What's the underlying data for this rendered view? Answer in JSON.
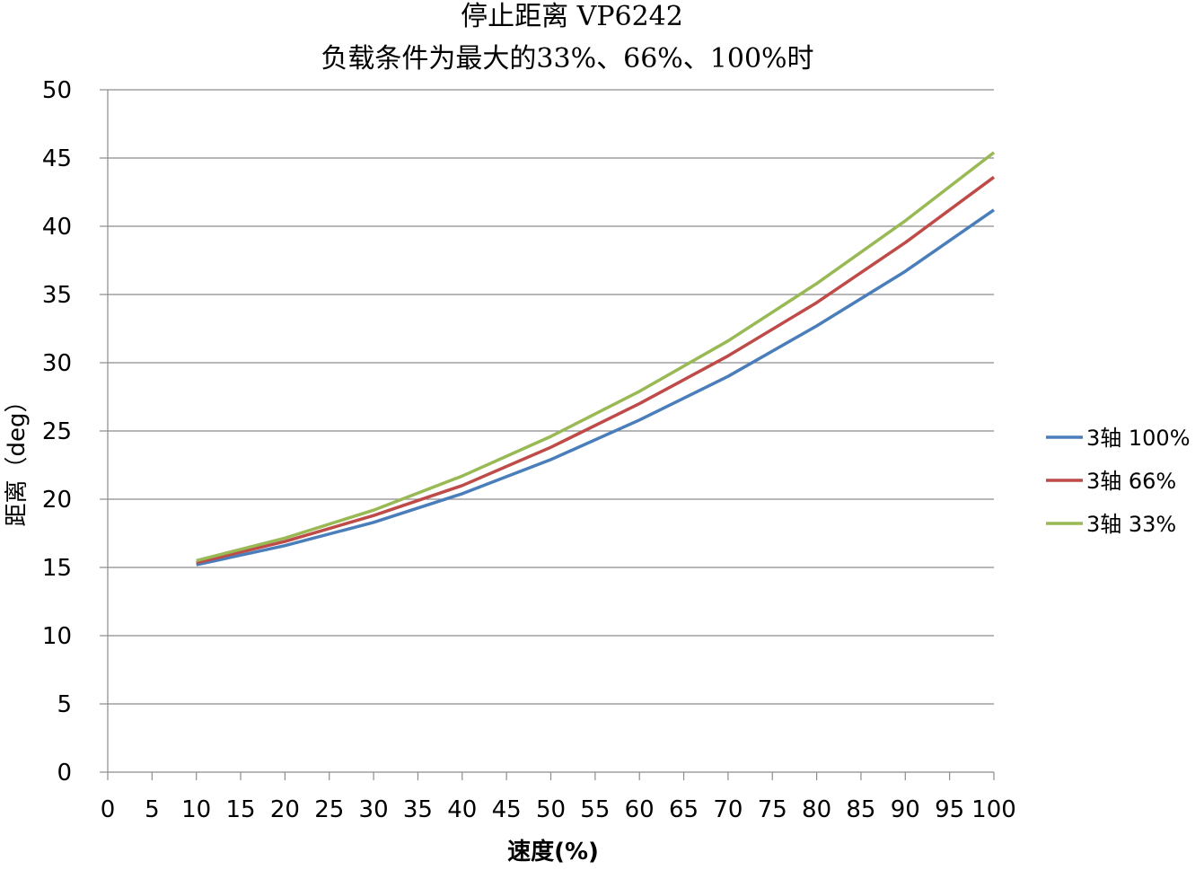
{
  "chart_data": {
    "type": "line",
    "title": "停止距离 VP6242",
    "subtitle": "负载条件为最大的33%、66%、100%时",
    "xlabel": "速度(%)",
    "ylabel": "距离（deg）",
    "xlim": [
      0,
      100
    ],
    "ylim": [
      0,
      50
    ],
    "x_ticks": [
      "0",
      "5",
      "10",
      "15",
      "20",
      "25",
      "30",
      "35",
      "40",
      "45",
      "50",
      "55",
      "60",
      "65",
      "70",
      "75",
      "80",
      "85",
      "90",
      "95",
      "100"
    ],
    "y_ticks": [
      "0",
      "5",
      "10",
      "15",
      "20",
      "25",
      "30",
      "35",
      "40",
      "45",
      "50"
    ],
    "grid": "horizontal",
    "legend_position": "right",
    "x": [
      10,
      20,
      30,
      40,
      50,
      60,
      70,
      80,
      90,
      100
    ],
    "series": [
      {
        "name": "3轴  100%",
        "color": "#4a7ebb",
        "values": [
          15.2,
          16.6,
          18.3,
          20.4,
          22.9,
          25.8,
          29.0,
          32.7,
          36.7,
          41.2
        ]
      },
      {
        "name": "3轴  66%",
        "color": "#be4b48",
        "values": [
          15.35,
          16.9,
          18.8,
          21.0,
          23.8,
          27.0,
          30.5,
          34.4,
          38.8,
          43.6
        ]
      },
      {
        "name": "3轴  33%",
        "color": "#98b954",
        "values": [
          15.5,
          17.15,
          19.2,
          21.7,
          24.6,
          27.9,
          31.6,
          35.8,
          40.4,
          45.4
        ]
      }
    ]
  }
}
